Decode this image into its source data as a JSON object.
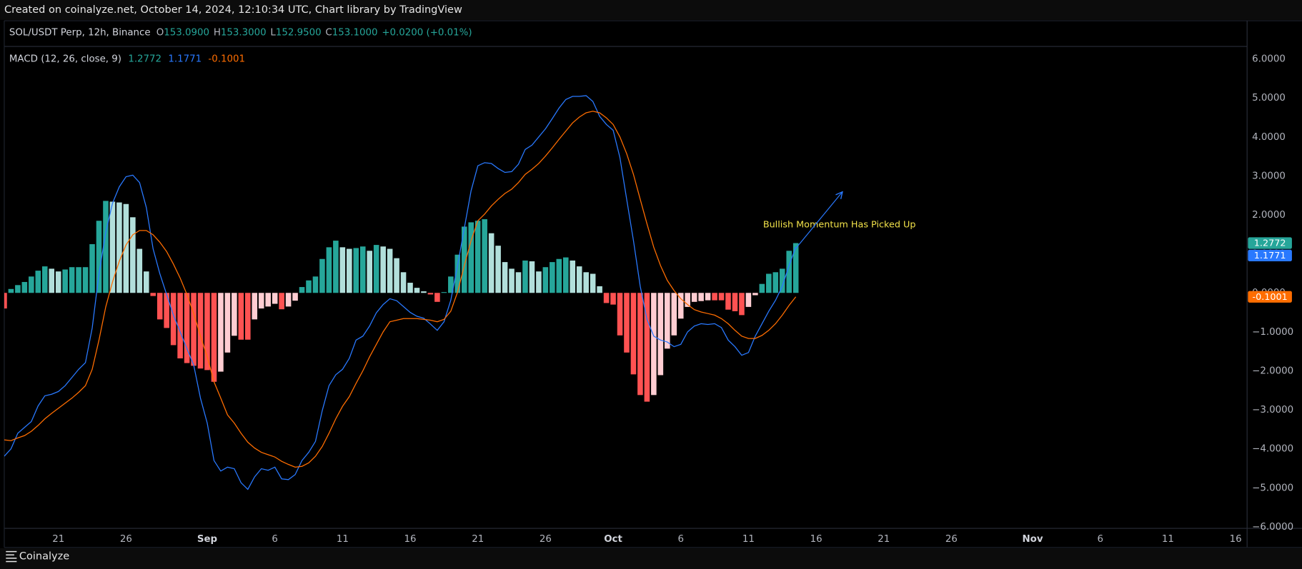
{
  "header": {
    "text": "Created on coinalyze.net, October 14, 2024, 12:10:34 UTC, Chart library by TradingView"
  },
  "footer": {
    "brand": "Coinalyze"
  },
  "chart_data": {
    "type": "combo",
    "symbol": "SOL/USDT Perp, 12h, Binance",
    "ohlc": [
      {
        "label": "O",
        "value": "153.0900"
      },
      {
        "label": "H",
        "value": "153.3000"
      },
      {
        "label": "L",
        "value": "152.9500"
      },
      {
        "label": "C",
        "value": "153.1000"
      }
    ],
    "change": "+0.0200 (+0.01%)",
    "indicator": "MACD (12, 26, close, 9)",
    "annotation": "Bullish Momentum Has Picked Up",
    "annotation_color": "#f2e24a",
    "grid": false,
    "xlim": [
      0,
      183.7
    ],
    "xticks": [
      {
        "value": 8,
        "label": "21"
      },
      {
        "value": 18,
        "label": "26"
      },
      {
        "value": 30,
        "label": "Sep"
      },
      {
        "value": 40,
        "label": "6"
      },
      {
        "value": 50,
        "label": "11"
      },
      {
        "value": 60,
        "label": "16"
      },
      {
        "value": 70,
        "label": "21"
      },
      {
        "value": 80,
        "label": "26"
      },
      {
        "value": 90,
        "label": "Oct"
      },
      {
        "value": 100,
        "label": "6"
      },
      {
        "value": 110,
        "label": "11"
      },
      {
        "value": 120,
        "label": "16"
      },
      {
        "value": 130,
        "label": "21"
      },
      {
        "value": 140,
        "label": "26"
      },
      {
        "value": 152,
        "label": "Nov"
      },
      {
        "value": 162,
        "label": "6"
      },
      {
        "value": 172,
        "label": "11"
      },
      {
        "value": 182,
        "label": "16"
      }
    ],
    "ylim": [
      -6.04,
      6.3
    ],
    "yticks": [
      {
        "value": 6,
        "label": "6.0000"
      },
      {
        "value": 5,
        "label": "5.0000"
      },
      {
        "value": 4,
        "label": "4.0000"
      },
      {
        "value": 3,
        "label": "3.0000"
      },
      {
        "value": 2,
        "label": "2.0000"
      },
      {
        "value": 1,
        "label": "1.0000"
      },
      {
        "value": 0,
        "label": "0.0000"
      },
      {
        "value": -1,
        "label": "−1.0000"
      },
      {
        "value": -2,
        "label": "−2.0000"
      },
      {
        "value": -3,
        "label": "−3.0000"
      },
      {
        "value": -4,
        "label": "−4.0000"
      },
      {
        "value": -5,
        "label": "−5.0000"
      },
      {
        "value": -6,
        "label": "−6.0000"
      }
    ],
    "series": [
      {
        "type": "histogram",
        "colors": [
          "#26a69a",
          "#b2dfdb",
          "#ffcdd2",
          "#ff5252"
        ],
        "values": [
          -0.4,
          0.1,
          0.2,
          0.28,
          0.42,
          0.57,
          0.68,
          0.62,
          0.55,
          0.6,
          0.66,
          0.66,
          0.66,
          1.25,
          1.85,
          2.36,
          2.34,
          2.32,
          2.28,
          1.94,
          1.13,
          0.55,
          -0.08,
          -0.68,
          -0.9,
          -1.34,
          -1.68,
          -1.8,
          -1.87,
          -1.94,
          -1.98,
          -2.28,
          -2.02,
          -1.53,
          -1.1,
          -1.2,
          -1.2,
          -0.68,
          -0.4,
          -0.35,
          -0.28,
          -0.42,
          -0.35,
          -0.2,
          0.15,
          0.32,
          0.42,
          0.87,
          1.17,
          1.34,
          1.17,
          1.13,
          1.15,
          1.19,
          1.08,
          1.23,
          1.19,
          1.13,
          0.89,
          0.53,
          0.26,
          0.13,
          0.04,
          -0.04,
          -0.23,
          0.02,
          0.42,
          0.98,
          1.7,
          1.81,
          1.85,
          1.89,
          1.53,
          1.21,
          0.79,
          0.62,
          0.53,
          0.83,
          0.81,
          0.55,
          0.66,
          0.79,
          0.87,
          0.91,
          0.83,
          0.68,
          0.53,
          0.49,
          0.17,
          -0.26,
          -0.3,
          -1.09,
          -1.53,
          -2.09,
          -2.62,
          -2.79,
          -2.62,
          -2.11,
          -1.43,
          -1.09,
          -0.66,
          -0.36,
          -0.23,
          -0.21,
          -0.19,
          -0.19,
          -0.19,
          -0.43,
          -0.47,
          -0.57,
          -0.36,
          -0.06,
          0.23,
          0.49,
          0.53,
          0.62,
          1.08,
          1.2772
        ]
      },
      {
        "type": "line",
        "color": "#2979ff",
        "values": [
          -4.19,
          -4.0,
          -3.6,
          -3.45,
          -3.3,
          -2.9,
          -2.64,
          -2.6,
          -2.53,
          -2.38,
          -2.17,
          -1.96,
          -1.79,
          -0.9,
          0.49,
          1.55,
          2.3,
          2.72,
          2.98,
          3.02,
          2.83,
          2.19,
          1.13,
          0.49,
          -0.04,
          -0.57,
          -1.0,
          -1.43,
          -1.85,
          -2.7,
          -3.34,
          -4.3,
          -4.57,
          -4.47,
          -4.51,
          -4.87,
          -5.04,
          -4.72,
          -4.51,
          -4.55,
          -4.47,
          -4.77,
          -4.79,
          -4.66,
          -4.3,
          -4.09,
          -3.81,
          -3.02,
          -2.38,
          -2.1,
          -1.96,
          -1.68,
          -1.21,
          -1.11,
          -0.85,
          -0.51,
          -0.3,
          -0.15,
          -0.2,
          -0.35,
          -0.5,
          -0.6,
          -0.65,
          -0.8,
          -0.96,
          -0.74,
          -0.19,
          0.7,
          1.66,
          2.62,
          3.26,
          3.34,
          3.32,
          3.19,
          3.09,
          3.11,
          3.3,
          3.68,
          3.79,
          4.0,
          4.21,
          4.47,
          4.74,
          4.96,
          5.04,
          5.04,
          5.06,
          4.91,
          4.53,
          4.32,
          4.17,
          3.47,
          2.4,
          1.34,
          0.17,
          -0.68,
          -1.11,
          -1.21,
          -1.26,
          -1.38,
          -1.32,
          -1.0,
          -0.85,
          -0.79,
          -0.81,
          -0.79,
          -0.89,
          -1.21,
          -1.38,
          -1.6,
          -1.53,
          -1.11,
          -0.79,
          -0.47,
          -0.19,
          0.17,
          0.7,
          1.1771
        ]
      },
      {
        "type": "line",
        "color": "#ff6d00",
        "values": [
          -3.77,
          -3.79,
          -3.72,
          -3.66,
          -3.55,
          -3.4,
          -3.23,
          -3.09,
          -2.96,
          -2.83,
          -2.7,
          -2.55,
          -2.38,
          -1.96,
          -1.21,
          -0.36,
          0.28,
          0.81,
          1.23,
          1.49,
          1.6,
          1.6,
          1.49,
          1.3,
          1.06,
          0.74,
          0.38,
          -0.04,
          -0.53,
          -1.11,
          -1.64,
          -2.28,
          -2.7,
          -3.13,
          -3.34,
          -3.6,
          -3.83,
          -3.98,
          -4.09,
          -4.15,
          -4.21,
          -4.32,
          -4.4,
          -4.47,
          -4.45,
          -4.36,
          -4.19,
          -3.94,
          -3.6,
          -3.23,
          -2.91,
          -2.66,
          -2.32,
          -2.0,
          -1.64,
          -1.32,
          -1.0,
          -0.74,
          -0.7,
          -0.66,
          -0.66,
          -0.66,
          -0.68,
          -0.7,
          -0.74,
          -0.68,
          -0.47,
          0.02,
          0.7,
          1.34,
          1.85,
          2.02,
          2.23,
          2.4,
          2.55,
          2.66,
          2.83,
          3.04,
          3.17,
          3.32,
          3.51,
          3.72,
          3.94,
          4.15,
          4.36,
          4.51,
          4.62,
          4.66,
          4.62,
          4.49,
          4.32,
          4.0,
          3.57,
          3.04,
          2.4,
          1.77,
          1.17,
          0.7,
          0.32,
          0.06,
          -0.15,
          -0.3,
          -0.43,
          -0.49,
          -0.53,
          -0.57,
          -0.66,
          -0.79,
          -0.96,
          -1.11,
          -1.17,
          -1.17,
          -1.09,
          -0.96,
          -0.79,
          -0.57,
          -0.32,
          -0.1001
        ]
      }
    ]
  }
}
